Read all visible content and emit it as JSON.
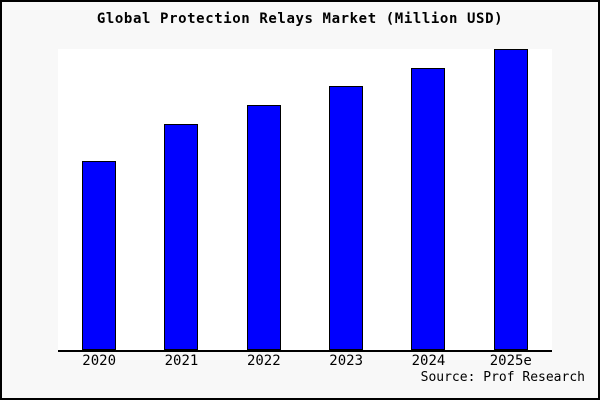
{
  "frame": {
    "background": "#f8f8f8",
    "border_color": "#000000"
  },
  "chart_data": {
    "type": "bar",
    "title": "Global Protection Relays Market (Million USD)",
    "categories": [
      "2020",
      "2021",
      "2022",
      "2023",
      "2024",
      "2025e"
    ],
    "values": [
      62.8,
      75.1,
      81.4,
      87.7,
      93.7,
      100
    ],
    "max_value": 100,
    "value_scale": "relative index, tallest bar (2025e) = 100; no y-axis or value labels shown",
    "ylim": [
      0,
      100.3
    ],
    "xlabel": "",
    "ylabel": "",
    "grid": false,
    "legend": false,
    "bar_color": "#0000ff",
    "bar_border_color": "#000000",
    "axis_color": "#000000",
    "plot_background": "#ffffff"
  },
  "source": {
    "text": "Source: Prof Research"
  }
}
